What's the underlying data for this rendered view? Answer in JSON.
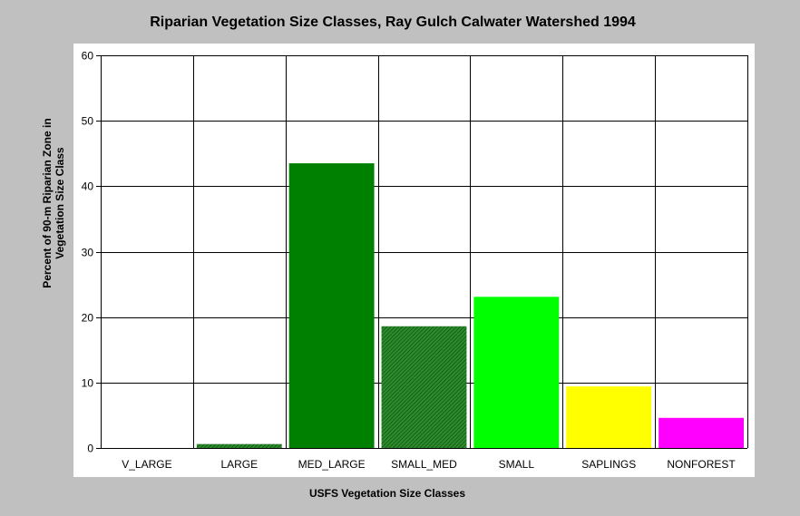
{
  "chart_data": {
    "type": "bar",
    "title": "Riparian Vegetation Size Classes, Ray Gulch Calwater Watershed 1994",
    "xlabel": "USFS Vegetation Size Classes",
    "ylabel_lines": [
      "Percent of 90-m Riparian Zone in",
      "Vegetation Size Class"
    ],
    "categories": [
      "V_LARGE",
      "LARGE",
      "MED_LARGE",
      "SMALL_MED",
      "SMALL",
      "SAPLINGS",
      "NONFOREST"
    ],
    "values": [
      0,
      0.6,
      43.5,
      18.6,
      23.1,
      9.4,
      4.6
    ],
    "colors": [
      "#006400",
      "#0a4d0a",
      "#008000",
      "#2e8b2e",
      "#00ff00",
      "#ffff00",
      "#ff00ff"
    ],
    "hatched": [
      false,
      true,
      false,
      true,
      false,
      false,
      false
    ],
    "ylim": [
      0,
      60
    ],
    "yticks": [
      0,
      10,
      20,
      30,
      40,
      50,
      60
    ],
    "grid": true
  }
}
